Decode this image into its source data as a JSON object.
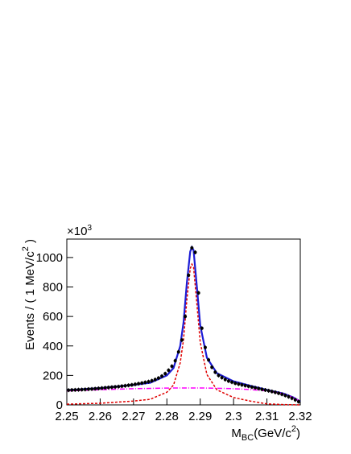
{
  "chart_data": {
    "type": "scatter",
    "multiplier": {
      "base": "×10",
      "exp": "3"
    },
    "y_label": {
      "main": "Events / ( 1 MeV/c",
      "sup": "2",
      "end": " )"
    },
    "x_label": {
      "main": "M",
      "sub": "BC",
      "rest": "(GeV/c",
      "sup": "2",
      "end": ")"
    },
    "xlim": [
      2.25,
      2.32
    ],
    "ylim": [
      0,
      1125
    ],
    "xticks": [
      2.25,
      2.26,
      2.27,
      2.28,
      2.29,
      2.3,
      2.31,
      2.32
    ],
    "yticks": [
      0,
      200,
      400,
      600,
      800,
      1000
    ],
    "points": {
      "color": "#000000",
      "x": [
        2.2505,
        2.2515,
        2.2525,
        2.2535,
        2.2545,
        2.2555,
        2.2565,
        2.2575,
        2.2585,
        2.2595,
        2.2605,
        2.2615,
        2.2625,
        2.2635,
        2.2645,
        2.2655,
        2.2665,
        2.2675,
        2.2685,
        2.2695,
        2.2705,
        2.2715,
        2.2725,
        2.2735,
        2.2745,
        2.2755,
        2.2765,
        2.2775,
        2.2785,
        2.2795,
        2.2805,
        2.2815,
        2.2825,
        2.2835,
        2.2845,
        2.2855,
        2.2865,
        2.2875,
        2.2885,
        2.2895,
        2.2905,
        2.2915,
        2.2925,
        2.2935,
        2.2945,
        2.2955,
        2.2965,
        2.2975,
        2.2985,
        2.2995,
        2.3005,
        2.3015,
        2.3025,
        2.3035,
        2.3045,
        2.3055,
        2.3065,
        2.3075,
        2.3085,
        2.3095,
        2.3105,
        2.3115,
        2.3125,
        2.3135,
        2.3145,
        2.3155,
        2.3165,
        2.3175,
        2.3185,
        2.3195
      ],
      "values": [
        100,
        101,
        102,
        103,
        104,
        105,
        107,
        108,
        110,
        112,
        114,
        116,
        118,
        120,
        122,
        124,
        127,
        130,
        133,
        136,
        140,
        144,
        148,
        153,
        158,
        164,
        172,
        182,
        195,
        212,
        235,
        262,
        300,
        360,
        440,
        600,
        880,
        1065,
        1035,
        760,
        520,
        390,
        305,
        255,
        222,
        200,
        185,
        172,
        162,
        154,
        147,
        141,
        136,
        131,
        126,
        121,
        116,
        111,
        106,
        101,
        96,
        91,
        85,
        79,
        72,
        64,
        55,
        45,
        34,
        22
      ]
    },
    "curves_x": [
      2.25,
      2.26,
      2.27,
      2.275,
      2.28,
      2.282,
      2.284,
      2.285,
      2.286,
      2.287,
      2.2875,
      2.288,
      2.289,
      2.29,
      2.292,
      2.295,
      2.3,
      2.305,
      2.31,
      2.315,
      2.318,
      2.32
    ],
    "series": [
      {
        "color": "#1c1cd6",
        "values": [
          100,
          114,
          136,
          150,
          200,
          250,
          400,
          560,
          830,
          1040,
          1070,
          1050,
          800,
          540,
          320,
          215,
          160,
          130,
          102,
          77,
          50,
          22
        ]
      },
      {
        "color": "#e00000",
        "values": [
          5,
          11,
          26,
          38,
          86,
          135,
          285,
          445,
          715,
          925,
          955,
          935,
          685,
          425,
          206,
          102,
          50,
          26,
          7,
          2,
          1,
          0
        ]
      },
      {
        "color": "#ff00ff",
        "values": [
          95,
          103,
          110,
          112,
          114,
          115,
          115,
          115,
          115,
          115,
          115,
          115,
          115,
          115,
          114,
          113,
          110,
          104,
          95,
          75,
          49,
          22
        ]
      }
    ]
  }
}
